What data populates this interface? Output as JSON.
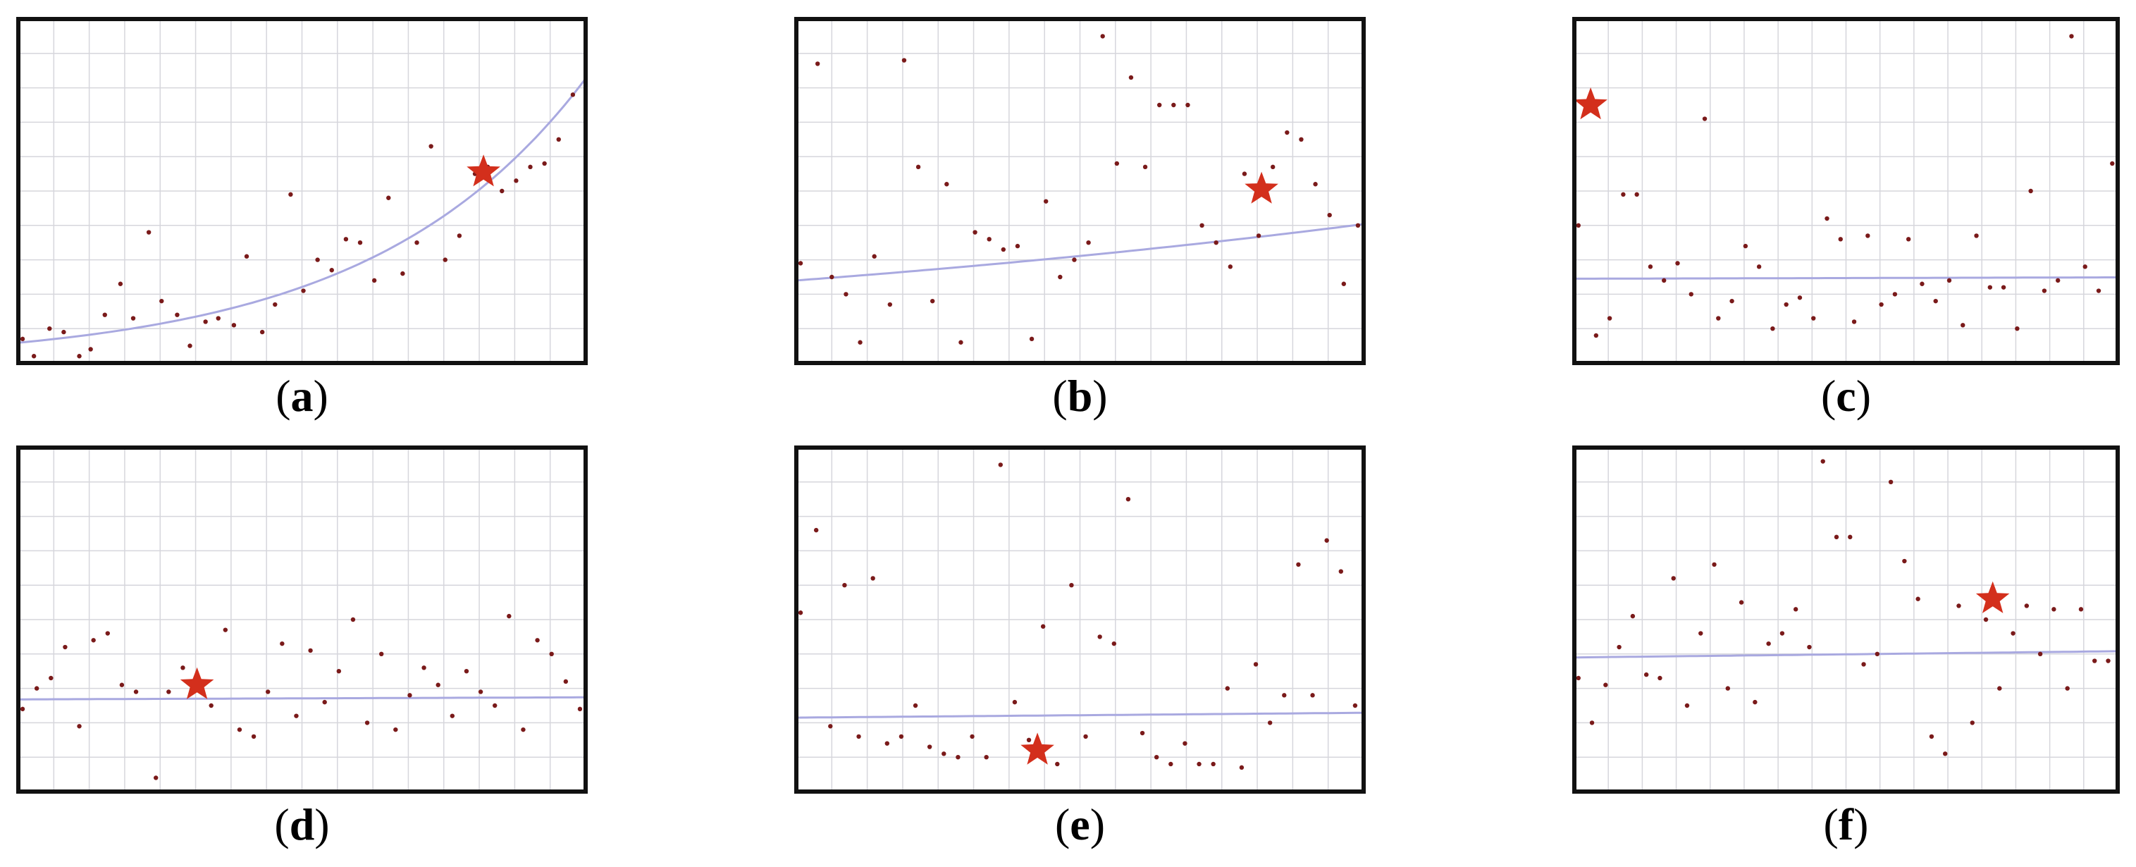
{
  "figure": {
    "background": "#ffffff",
    "frame_color": "#111111",
    "grid_color": "#d6d6dc",
    "point_color": "#7a1a1a",
    "trend_color": "#a9a9e0",
    "star_color": "#d32f1c"
  },
  "chart_data": [
    {
      "type": "scatter",
      "caption_letter": "a",
      "xlim": [
        0,
        40
      ],
      "ylim": [
        0,
        100
      ],
      "grid": true,
      "grid_cols": 16,
      "grid_rows": 10,
      "points": [
        [
          0.3,
          7
        ],
        [
          1.1,
          2
        ],
        [
          2.2,
          10
        ],
        [
          3.2,
          9
        ],
        [
          4.3,
          2
        ],
        [
          5.1,
          4
        ],
        [
          6.1,
          14
        ],
        [
          7.2,
          23
        ],
        [
          8.1,
          13
        ],
        [
          9.2,
          38
        ],
        [
          10.1,
          18
        ],
        [
          11.2,
          14
        ],
        [
          12.1,
          5
        ],
        [
          13.2,
          12
        ],
        [
          14.1,
          13
        ],
        [
          15.2,
          11
        ],
        [
          16.1,
          31
        ],
        [
          17.2,
          9
        ],
        [
          18.1,
          17
        ],
        [
          19.2,
          49
        ],
        [
          20.1,
          21
        ],
        [
          21.1,
          30
        ],
        [
          22.1,
          27
        ],
        [
          23.1,
          36
        ],
        [
          24.1,
          35
        ],
        [
          25.1,
          24
        ],
        [
          26.1,
          48
        ],
        [
          27.1,
          26
        ],
        [
          28.1,
          35
        ],
        [
          29.1,
          63
        ],
        [
          30.1,
          30
        ],
        [
          31.1,
          37
        ],
        [
          32.2,
          55
        ],
        [
          33.1,
          57
        ],
        [
          34.1,
          50
        ],
        [
          35.1,
          53
        ],
        [
          36.1,
          57
        ],
        [
          37.1,
          58
        ],
        [
          38.1,
          65
        ],
        [
          39.1,
          78
        ]
      ],
      "trend": {
        "kind": "exponential",
        "a": 5.9,
        "b": 0.066
      },
      "star": [
        32.8,
        55.5
      ]
    },
    {
      "type": "scatter",
      "caption_letter": "b",
      "xlim": [
        0,
        40
      ],
      "ylim": [
        0,
        100
      ],
      "grid": true,
      "grid_cols": 16,
      "grid_rows": 10,
      "points": [
        [
          0.3,
          29
        ],
        [
          1.5,
          87
        ],
        [
          2.5,
          25
        ],
        [
          3.5,
          20
        ],
        [
          4.5,
          6
        ],
        [
          5.5,
          31
        ],
        [
          6.6,
          17
        ],
        [
          7.6,
          88
        ],
        [
          8.6,
          57
        ],
        [
          9.6,
          18
        ],
        [
          10.6,
          52
        ],
        [
          11.6,
          6
        ],
        [
          12.6,
          38
        ],
        [
          13.6,
          36
        ],
        [
          14.6,
          33
        ],
        [
          15.6,
          34
        ],
        [
          16.6,
          7
        ],
        [
          17.6,
          47
        ],
        [
          18.6,
          25
        ],
        [
          19.6,
          30
        ],
        [
          20.6,
          35
        ],
        [
          21.6,
          95
        ],
        [
          22.6,
          58
        ],
        [
          23.6,
          83
        ],
        [
          24.6,
          57
        ],
        [
          25.6,
          75
        ],
        [
          26.6,
          75
        ],
        [
          27.6,
          75
        ],
        [
          28.6,
          40
        ],
        [
          29.6,
          35
        ],
        [
          30.6,
          28
        ],
        [
          31.6,
          55
        ],
        [
          32.6,
          37
        ],
        [
          33.6,
          57
        ],
        [
          34.6,
          67
        ],
        [
          35.6,
          65
        ],
        [
          36.6,
          52
        ],
        [
          37.6,
          43
        ],
        [
          38.6,
          23
        ],
        [
          39.6,
          40
        ]
      ],
      "trend": {
        "kind": "exponential",
        "a": 24,
        "b": 0.013
      },
      "star": [
        32.8,
        50.5
      ]
    },
    {
      "type": "scatter",
      "caption_letter": "c",
      "xlim": [
        0,
        40
      ],
      "ylim": [
        0,
        100
      ],
      "grid": true,
      "grid_cols": 16,
      "grid_rows": 10,
      "points": [
        [
          0.3,
          40
        ],
        [
          1.6,
          8
        ],
        [
          2.6,
          13
        ],
        [
          3.6,
          49
        ],
        [
          4.6,
          49
        ],
        [
          5.6,
          28
        ],
        [
          6.6,
          24
        ],
        [
          7.6,
          29
        ],
        [
          8.6,
          20
        ],
        [
          9.6,
          71
        ],
        [
          10.6,
          13
        ],
        [
          11.6,
          18
        ],
        [
          12.6,
          34
        ],
        [
          13.6,
          28
        ],
        [
          14.6,
          10
        ],
        [
          15.6,
          17
        ],
        [
          16.6,
          19
        ],
        [
          17.6,
          13
        ],
        [
          18.6,
          42
        ],
        [
          19.6,
          36
        ],
        [
          20.6,
          12
        ],
        [
          21.6,
          37
        ],
        [
          22.6,
          17
        ],
        [
          23.6,
          20
        ],
        [
          24.6,
          36
        ],
        [
          25.6,
          23
        ],
        [
          26.6,
          18
        ],
        [
          27.6,
          24
        ],
        [
          28.6,
          11
        ],
        [
          29.6,
          37
        ],
        [
          30.6,
          22
        ],
        [
          31.6,
          22
        ],
        [
          32.6,
          10
        ],
        [
          33.6,
          50
        ],
        [
          34.6,
          21
        ],
        [
          35.6,
          24
        ],
        [
          36.6,
          95
        ],
        [
          37.6,
          28
        ],
        [
          38.6,
          21
        ],
        [
          39.6,
          58
        ]
      ],
      "trend": {
        "kind": "linear",
        "m": 0.01,
        "c": 24.5
      },
      "star": [
        1.2,
        75
      ]
    },
    {
      "type": "scatter",
      "caption_letter": "d",
      "xlim": [
        0,
        40
      ],
      "ylim": [
        0,
        100
      ],
      "grid": true,
      "grid_cols": 16,
      "grid_rows": 10,
      "points": [
        [
          0.3,
          24
        ],
        [
          1.3,
          30
        ],
        [
          2.3,
          33
        ],
        [
          3.3,
          42
        ],
        [
          4.3,
          19
        ],
        [
          5.3,
          44
        ],
        [
          6.3,
          46
        ],
        [
          7.3,
          31
        ],
        [
          8.3,
          29
        ],
        [
          9.7,
          4
        ],
        [
          10.6,
          29
        ],
        [
          11.6,
          36
        ],
        [
          12.6,
          30
        ],
        [
          13.6,
          25
        ],
        [
          14.6,
          47
        ],
        [
          15.6,
          18
        ],
        [
          16.6,
          16
        ],
        [
          17.6,
          29
        ],
        [
          18.6,
          43
        ],
        [
          19.6,
          22
        ],
        [
          20.6,
          41
        ],
        [
          21.6,
          26
        ],
        [
          22.6,
          35
        ],
        [
          23.6,
          50
        ],
        [
          24.6,
          20
        ],
        [
          25.6,
          40
        ],
        [
          26.6,
          18
        ],
        [
          27.6,
          28
        ],
        [
          28.6,
          36
        ],
        [
          29.6,
          31
        ],
        [
          30.6,
          22
        ],
        [
          31.6,
          35
        ],
        [
          32.6,
          29
        ],
        [
          33.6,
          25
        ],
        [
          34.6,
          51
        ],
        [
          35.6,
          18
        ],
        [
          36.6,
          44
        ],
        [
          37.6,
          40
        ],
        [
          38.6,
          32
        ],
        [
          39.6,
          24
        ]
      ],
      "trend": {
        "kind": "linear",
        "m": 0.015,
        "c": 26.8
      },
      "star": [
        12.6,
        31
      ]
    },
    {
      "type": "scatter",
      "caption_letter": "e",
      "xlim": [
        0,
        40
      ],
      "ylim": [
        0,
        100
      ],
      "grid": true,
      "grid_cols": 16,
      "grid_rows": 10,
      "points": [
        [
          0.3,
          52
        ],
        [
          1.4,
          76
        ],
        [
          2.4,
          19
        ],
        [
          3.4,
          60
        ],
        [
          4.4,
          16
        ],
        [
          5.4,
          62
        ],
        [
          6.4,
          14
        ],
        [
          7.4,
          16
        ],
        [
          8.4,
          25
        ],
        [
          9.4,
          13
        ],
        [
          10.4,
          11
        ],
        [
          11.4,
          10
        ],
        [
          12.4,
          16
        ],
        [
          13.4,
          10
        ],
        [
          14.4,
          95
        ],
        [
          15.4,
          26
        ],
        [
          16.4,
          15
        ],
        [
          17.4,
          48
        ],
        [
          18.4,
          8
        ],
        [
          19.4,
          60
        ],
        [
          20.4,
          16
        ],
        [
          21.4,
          45
        ],
        [
          22.4,
          43
        ],
        [
          23.4,
          85
        ],
        [
          24.4,
          17
        ],
        [
          25.4,
          10
        ],
        [
          26.4,
          8
        ],
        [
          27.4,
          14
        ],
        [
          28.4,
          8
        ],
        [
          29.4,
          8
        ],
        [
          30.4,
          30
        ],
        [
          31.4,
          7
        ],
        [
          32.4,
          37
        ],
        [
          33.4,
          20
        ],
        [
          34.4,
          28
        ],
        [
          35.4,
          66
        ],
        [
          36.4,
          28
        ],
        [
          37.4,
          73
        ],
        [
          38.4,
          64
        ],
        [
          39.4,
          25
        ]
      ],
      "trend": {
        "kind": "linear",
        "m": 0.035,
        "c": 21.5
      },
      "star": [
        17.0,
        12
      ]
    },
    {
      "type": "scatter",
      "caption_letter": "f",
      "xlim": [
        0,
        40
      ],
      "ylim": [
        0,
        100
      ],
      "grid": true,
      "grid_cols": 16,
      "grid_rows": 10,
      "points": [
        [
          0.3,
          33
        ],
        [
          1.3,
          20
        ],
        [
          2.3,
          31
        ],
        [
          3.3,
          42
        ],
        [
          4.3,
          51
        ],
        [
          5.3,
          34
        ],
        [
          6.3,
          33
        ],
        [
          7.3,
          62
        ],
        [
          8.3,
          25
        ],
        [
          9.3,
          46
        ],
        [
          10.3,
          66
        ],
        [
          11.3,
          30
        ],
        [
          12.3,
          55
        ],
        [
          13.3,
          26
        ],
        [
          14.3,
          43
        ],
        [
          15.3,
          46
        ],
        [
          16.3,
          53
        ],
        [
          17.3,
          42
        ],
        [
          18.3,
          96
        ],
        [
          19.3,
          74
        ],
        [
          20.3,
          74
        ],
        [
          21.3,
          37
        ],
        [
          22.3,
          40
        ],
        [
          23.3,
          90
        ],
        [
          24.3,
          67
        ],
        [
          25.3,
          56
        ],
        [
          26.3,
          16
        ],
        [
          27.3,
          11
        ],
        [
          28.3,
          54
        ],
        [
          29.3,
          20
        ],
        [
          30.3,
          50
        ],
        [
          31.3,
          30
        ],
        [
          32.3,
          46
        ],
        [
          33.3,
          54
        ],
        [
          34.3,
          40
        ],
        [
          35.3,
          53
        ],
        [
          36.3,
          30
        ],
        [
          37.3,
          53
        ],
        [
          38.3,
          38
        ],
        [
          39.3,
          38
        ]
      ],
      "trend": {
        "kind": "linear",
        "m": 0.045,
        "c": 39
      },
      "star": [
        30.8,
        56
      ]
    }
  ]
}
